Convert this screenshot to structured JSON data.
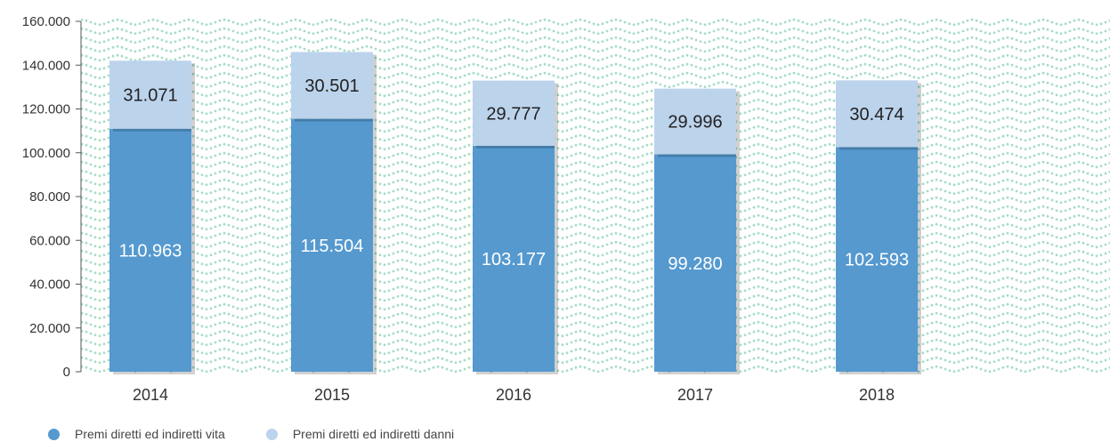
{
  "chart_data": {
    "type": "bar",
    "stacked": true,
    "categories": [
      "2014",
      "2015",
      "2016",
      "2017",
      "2018"
    ],
    "series": [
      {
        "name": "Premi diretti ed indiretti vita",
        "values": [
          110963,
          115504,
          103177,
          99280,
          102593
        ],
        "labels": [
          "110.963",
          "115.504",
          "103.177",
          "99.280",
          "102.593"
        ],
        "color": "#5599cf"
      },
      {
        "name": "Premi diretti ed indiretti danni",
        "values": [
          31071,
          30501,
          29777,
          29996,
          30474
        ],
        "labels": [
          "31.071",
          "30.501",
          "29.777",
          "29.996",
          "30.474"
        ],
        "color": "#bcd3ec"
      }
    ],
    "yticks": [
      "0",
      "20.000",
      "40.000",
      "60.000",
      "80.000",
      "100.000",
      "120.000",
      "140.000",
      "160.000"
    ],
    "ylim": [
      0,
      160000
    ],
    "grid": false,
    "legend_position": "bottom-left",
    "background_pattern_color": "#a6dcc5"
  }
}
